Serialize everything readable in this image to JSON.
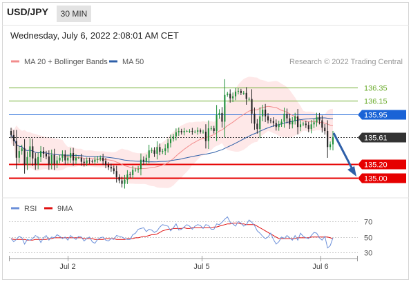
{
  "header": {
    "pair": "USD/JPY",
    "timeframe": "30 MIN",
    "datetime": "Wednesday, July 6, 2022 2:08:01 AM CET"
  },
  "legend": {
    "items": [
      {
        "label": "MA 20 + Bollinger Bands",
        "color": "#f28c8c"
      },
      {
        "label": "MA 50",
        "color": "#2e5fa8"
      }
    ],
    "credit": "Research © 2022 Trading Central"
  },
  "rsi_legend": {
    "items": [
      {
        "label": "RSI",
        "color": "#6b8fd9"
      },
      {
        "label": "9MA",
        "color": "#e01010"
      }
    ]
  },
  "chart_data": [
    {
      "type": "line",
      "title": "",
      "x_ticks": [
        "Jul 2",
        "Jul 5",
        "Jul 6"
      ],
      "levels": [
        {
          "value": 136.35,
          "label": "136.35",
          "color": "#6aab2a",
          "kind": "resistance"
        },
        {
          "value": 136.15,
          "label": "136.15",
          "color": "#6aab2a",
          "kind": "resistance"
        },
        {
          "value": 135.95,
          "label": "135.95",
          "color": "#1a63d6",
          "kind": "pivot"
        },
        {
          "value": 135.61,
          "label": "135.61",
          "color": "#333333",
          "kind": "last"
        },
        {
          "value": 135.2,
          "label": "135.20",
          "color": "#e60000",
          "kind": "support"
        },
        {
          "value": 135.0,
          "label": "135.00",
          "color": "#e60000",
          "kind": "support"
        }
      ],
      "price_range": [
        134.73,
        136.65
      ],
      "series": [
        {
          "name": "USD/JPY",
          "style": "candlestick",
          "values": [
            135.64,
            135.55,
            135.3,
            135.4,
            135.44,
            135.2,
            135.31,
            135.47,
            135.29,
            135.2,
            135.31,
            135.4,
            135.36,
            135.32,
            135.21,
            135.34,
            135.21,
            135.26,
            135.3,
            135.35,
            135.26,
            135.3,
            135.37,
            135.26,
            135.3,
            135.3,
            135.24,
            135.22,
            135.26,
            135.25,
            135.24,
            135.27,
            135.28,
            135.3,
            135.25,
            135.19,
            135.16,
            135.14,
            135.1,
            135.01,
            134.96,
            134.91,
            134.97,
            135.05,
            135.04,
            135.12,
            135.12,
            135.13,
            135.27,
            135.24,
            135.3,
            135.41,
            135.41,
            135.36,
            135.46,
            135.39,
            135.4,
            135.44,
            135.52,
            135.58,
            135.62,
            135.68,
            135.7,
            135.68,
            135.7,
            135.7,
            135.7,
            135.69,
            135.69,
            135.71,
            135.69,
            135.69,
            135.55,
            135.74,
            135.74,
            135.7,
            135.94,
            135.97,
            135.84,
            136.24,
            136.26,
            136.19,
            136.22,
            136.29,
            136.3,
            136.27,
            136.27,
            136.18,
            136.18,
            135.96,
            135.81,
            135.73,
            135.92,
            136.02,
            135.92,
            135.86,
            135.85,
            135.82,
            135.76,
            135.8,
            135.84,
            135.96,
            135.89,
            135.8,
            135.85,
            135.92,
            135.76,
            135.8,
            135.81,
            135.79,
            135.73,
            135.8,
            135.83,
            135.91,
            135.86,
            135.75,
            135.7,
            135.46,
            135.5,
            135.61
          ]
        },
        {
          "name": "MA 20",
          "style": "line"
        },
        {
          "name": "MA 50",
          "style": "line"
        }
      ]
    },
    {
      "type": "line",
      "title": "",
      "y_ticks": [
        70,
        50,
        30
      ],
      "ylim": [
        25,
        80
      ],
      "series": [
        {
          "name": "RSI",
          "values": [
            48,
            44,
            47,
            51,
            49,
            41,
            47,
            46,
            48,
            52,
            50,
            43,
            49,
            52,
            46,
            50,
            49,
            53,
            51,
            48,
            50,
            46,
            52,
            49,
            47,
            51,
            50,
            45,
            48,
            50,
            44,
            42,
            47,
            49,
            50,
            46,
            45,
            48,
            47,
            52,
            51,
            50,
            48,
            47,
            47,
            53,
            55,
            60,
            61,
            62,
            57,
            60,
            59,
            56,
            58,
            63,
            66,
            65,
            64,
            58,
            62,
            67,
            59,
            60,
            63,
            66,
            64,
            60,
            64,
            66,
            65,
            61,
            66,
            65,
            60,
            60,
            67,
            66,
            69,
            73,
            76,
            69,
            67,
            64,
            70,
            68,
            64,
            66,
            72,
            69,
            65,
            58,
            55,
            51,
            48,
            50,
            55,
            47,
            41,
            44,
            50,
            48,
            52,
            49,
            46,
            52,
            46,
            55,
            51,
            49,
            48,
            52,
            56,
            55,
            49,
            46,
            51,
            36,
            39,
            49
          ]
        },
        {
          "name": "9MA",
          "values": [
            48,
            47,
            47,
            47,
            47,
            47,
            46,
            46,
            46,
            47,
            47,
            47,
            47,
            47,
            48,
            48,
            49,
            49,
            49,
            49,
            49,
            49,
            49,
            49,
            49,
            49,
            49,
            48,
            48,
            48,
            48,
            47,
            47,
            47,
            47,
            48,
            48,
            48,
            48,
            47,
            47,
            47,
            47,
            48,
            48,
            48,
            49,
            49,
            50,
            51,
            51,
            52,
            53,
            53,
            54,
            56,
            58,
            59,
            60,
            60,
            61,
            61,
            61,
            61,
            62,
            61,
            61,
            62,
            62,
            62,
            62,
            62,
            62,
            62,
            62,
            63,
            63,
            64,
            65,
            66,
            67,
            67,
            68,
            68,
            68,
            67,
            67,
            66,
            66,
            66,
            66,
            64,
            62,
            60,
            58,
            56,
            54,
            52,
            50,
            48,
            48,
            48,
            48,
            48,
            48,
            48,
            49,
            49,
            49,
            49,
            49,
            50,
            50,
            50,
            50,
            50,
            50,
            50,
            49,
            48
          ]
        }
      ]
    }
  ]
}
